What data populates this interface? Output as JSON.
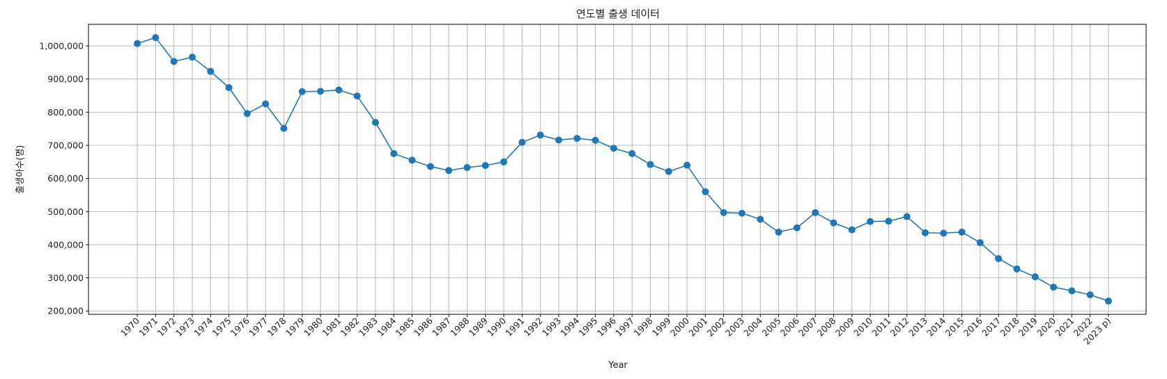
{
  "chart_data": {
    "type": "line",
    "title": "연도별 출생 데이터",
    "xlabel": "Year",
    "ylabel": "출생아수(명)",
    "ylim": [
      190000,
      1065000
    ],
    "yticks": [
      200000,
      300000,
      400000,
      500000,
      600000,
      700000,
      800000,
      900000,
      1000000
    ],
    "ytick_labels": [
      "200,000",
      "300,000",
      "400,000",
      "500,000",
      "600,000",
      "700,000",
      "800,000",
      "900,000",
      "1,000,000"
    ],
    "grid": true,
    "categories": [
      "1970",
      "1971",
      "1972",
      "1973",
      "1974",
      "1975",
      "1976",
      "1977",
      "1978",
      "1979",
      "1980",
      "1981",
      "1982",
      "1983",
      "1984",
      "1985",
      "1986",
      "1987",
      "1988",
      "1989",
      "1990",
      "1991",
      "1992",
      "1993",
      "1994",
      "1995",
      "1996",
      "1997",
      "1998",
      "1999",
      "2000",
      "2001",
      "2002",
      "2003",
      "2004",
      "2005",
      "2006",
      "2007",
      "2008",
      "2009",
      "2010",
      "2011",
      "2012",
      "2013",
      "2014",
      "2015",
      "2016",
      "2017",
      "2018",
      "2019",
      "2020",
      "2021",
      "2022",
      "2023 p)"
    ],
    "series": [
      {
        "color": "#1f77b4",
        "values": [
          1007000,
          1025000,
          953000,
          966000,
          923000,
          874000,
          796000,
          825000,
          751000,
          862000,
          863000,
          867000,
          849000,
          769000,
          675000,
          655000,
          636000,
          624000,
          633000,
          639000,
          650000,
          709000,
          731000,
          716000,
          721000,
          715000,
          691000,
          675000,
          642000,
          621000,
          640000,
          560000,
          497000,
          495000,
          477000,
          438000,
          451000,
          497000,
          466000,
          445000,
          470000,
          471000,
          485000,
          436000,
          435000,
          438000,
          406000,
          358000,
          327000,
          303000,
          272000,
          261000,
          249000,
          230000
        ]
      }
    ]
  }
}
